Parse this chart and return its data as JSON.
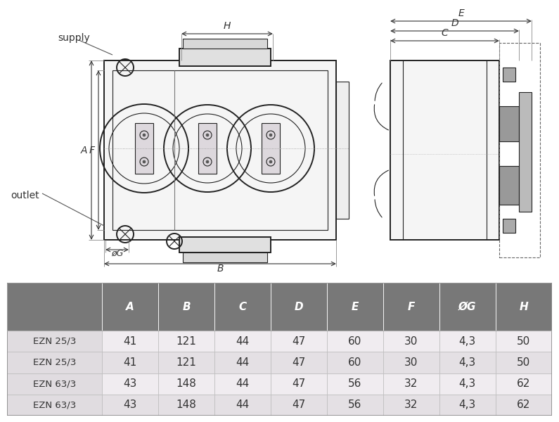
{
  "table_headers": [
    "",
    "A",
    "B",
    "C",
    "D",
    "E",
    "F",
    "ØG",
    "H"
  ],
  "table_rows": [
    [
      "EZN 25/3",
      "41",
      "121",
      "44",
      "47",
      "60",
      "30",
      "4,3",
      "50"
    ],
    [
      "EZN 25/3",
      "41",
      "121",
      "44",
      "47",
      "60",
      "30",
      "4,3",
      "50"
    ],
    [
      "EZN 63/3",
      "43",
      "148",
      "44",
      "47",
      "56",
      "32",
      "4,3",
      "62"
    ],
    [
      "EZN 63/3",
      "43",
      "148",
      "44",
      "47",
      "56",
      "32",
      "4,3",
      "62"
    ]
  ],
  "header_bg": "#787878",
  "header_fg": "#ffffff",
  "row_bg_light": "#f2eef2",
  "row_bg_mid": "#e8e4e8",
  "row_bg_dark": "#d8d4d8",
  "row_fg": "#333333",
  "line_color": "#222222",
  "dim_color": "#333333",
  "supply_label": "supply",
  "outlet_label": "outlet"
}
